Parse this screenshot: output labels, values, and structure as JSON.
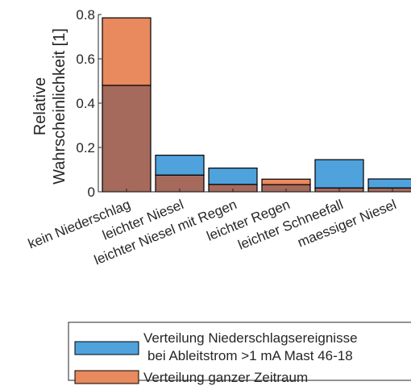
{
  "chart_data": {
    "type": "bar",
    "overlay": true,
    "categories": [
      "kein Niederschlag",
      "leichter Niesel",
      "leichter Niesel mit Regen",
      "leichter Regen",
      "leichter Schneefall",
      "maessiger Niesel"
    ],
    "ylabel": [
      "Relative",
      "Wahrscheinlichkeit [1]"
    ],
    "ylim": [
      0,
      0.8
    ],
    "yticks": [
      "0",
      "0.2",
      "0.4",
      "0.6",
      "0.8"
    ],
    "grid": false,
    "legend_position": "bottom",
    "series": [
      {
        "name": [
          "Verteilung Niederschlagsereignisse",
          "bei Ableitstrom >1 mA Mast 46-18"
        ],
        "values": [
          0.48,
          0.165,
          0.107,
          0.032,
          0.145,
          0.058
        ],
        "color": "#4fa2dc"
      },
      {
        "name": [
          "Verteilung ganzer Zeitraum"
        ],
        "values": [
          0.785,
          0.075,
          0.033,
          0.057,
          0.017,
          0.017
        ],
        "color": "#e8895e"
      }
    ],
    "overlap_color": "#a56a5c"
  }
}
